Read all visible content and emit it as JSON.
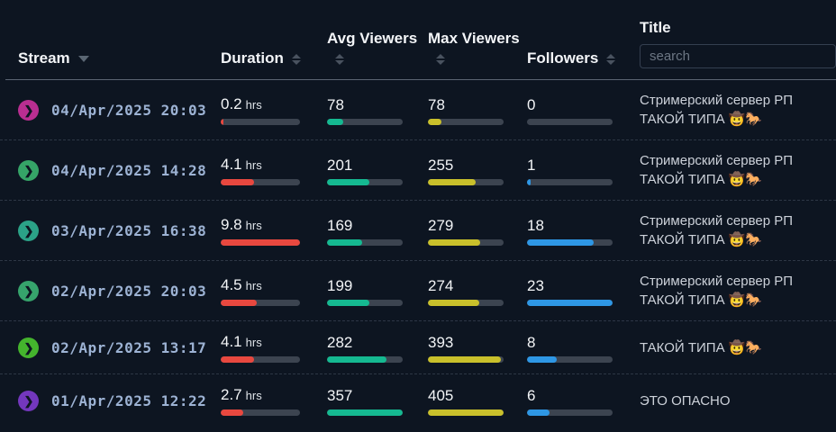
{
  "table": {
    "columns": {
      "stream": {
        "label": "Stream",
        "sort": "desc"
      },
      "duration": {
        "label": "Duration",
        "sortable": true
      },
      "avg_viewers": {
        "label": "Avg Viewers",
        "sortable": true
      },
      "max_viewers": {
        "label": "Max Viewers",
        "sortable": true
      },
      "followers": {
        "label": "Followers",
        "sortable": true
      },
      "title": {
        "label": "Title",
        "search_placeholder": "search"
      }
    },
    "duration_unit": "hrs",
    "colors": {
      "duration_bar": "#e8483f",
      "avg_viewers_bar": "#15b991",
      "max_viewers_bar": "#c9c02b",
      "followers_bar": "#2e97e5",
      "bar_track": "#3c4450"
    },
    "rows": [
      {
        "icon_color": "#b92e91",
        "date": "04/Apr/2025 20:03",
        "duration": "0.2",
        "duration_pct": 3,
        "avg_viewers": "78",
        "avg_pct": 21,
        "max_viewers": "78",
        "max_pct": 18,
        "followers": "0",
        "followers_pct": 0,
        "title": "Стримерский сервер РП ТАКОЙ ТИПА 🤠🐎"
      },
      {
        "icon_color": "#35a467",
        "date": "04/Apr/2025 14:28",
        "duration": "4.1",
        "duration_pct": 42,
        "avg_viewers": "201",
        "avg_pct": 56,
        "max_viewers": "255",
        "max_pct": 63,
        "followers": "1",
        "followers_pct": 4,
        "title": "Стримерский сервер РП ТАКОЙ ТИПА 🤠🐎"
      },
      {
        "icon_color": "#2ba287",
        "date": "03/Apr/2025 16:38",
        "duration": "9.8",
        "duration_pct": 100,
        "avg_viewers": "169",
        "avg_pct": 47,
        "max_viewers": "279",
        "max_pct": 69,
        "followers": "18",
        "followers_pct": 78,
        "title": "Стримерский сервер РП ТАКОЙ ТИПА 🤠🐎"
      },
      {
        "icon_color": "#36a46c",
        "date": "02/Apr/2025 20:03",
        "duration": "4.5",
        "duration_pct": 46,
        "avg_viewers": "199",
        "avg_pct": 56,
        "max_viewers": "274",
        "max_pct": 68,
        "followers": "23",
        "followers_pct": 100,
        "title": "Стримерский сервер РП ТАКОЙ ТИПА 🤠🐎"
      },
      {
        "icon_color": "#44b42d",
        "date": "02/Apr/2025 13:17",
        "duration": "4.1",
        "duration_pct": 42,
        "avg_viewers": "282",
        "avg_pct": 79,
        "max_viewers": "393",
        "max_pct": 97,
        "followers": "8",
        "followers_pct": 35,
        "title": "ТАКОЙ ТИПА 🤠🐎"
      },
      {
        "icon_color": "#7337bd",
        "date": "01/Apr/2025 12:22",
        "duration": "2.7",
        "duration_pct": 28,
        "avg_viewers": "357",
        "avg_pct": 100,
        "max_viewers": "405",
        "max_pct": 100,
        "followers": "6",
        "followers_pct": 26,
        "title": "ЭТО ОПАСНО"
      }
    ]
  }
}
